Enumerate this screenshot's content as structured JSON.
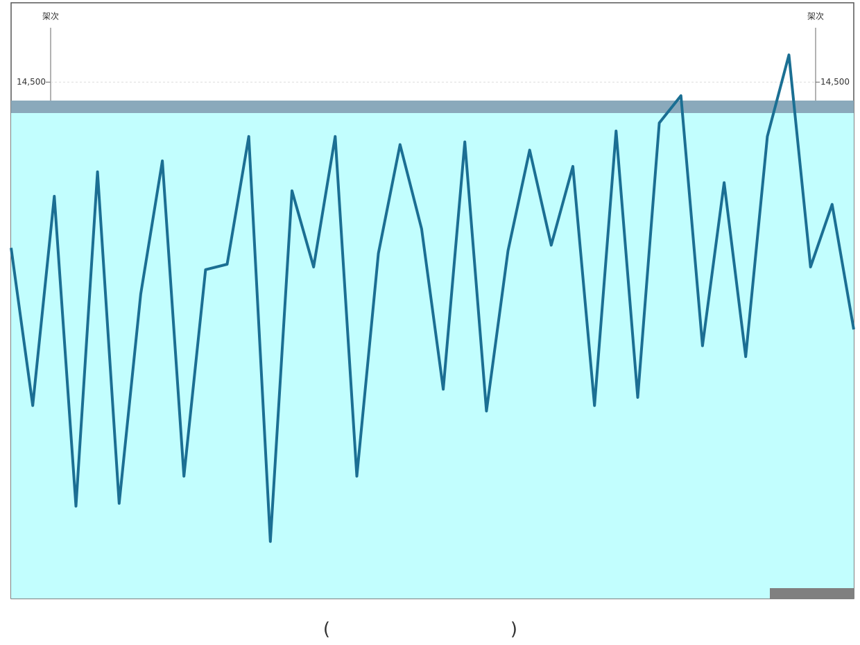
{
  "chart_data": {
    "type": "line",
    "ylabel": "架次",
    "y2label": "架次",
    "categories": [
      null,
      null,
      null,
      null,
      null,
      null,
      null,
      null,
      null,
      null,
      null,
      null,
      null,
      null,
      null,
      null,
      null,
      null,
      null,
      null,
      null,
      null,
      null,
      null,
      null,
      null,
      null,
      null,
      null,
      null,
      null,
      null,
      null,
      null,
      null,
      null,
      null,
      null,
      null,
      null
    ],
    "series": [
      {
        "color": "#1b6f93",
        "values": [
          13890,
          13310,
          14080,
          12940,
          14170,
          12950,
          13720,
          14210,
          13050,
          13810,
          13830,
          14300,
          12810,
          14100,
          13820,
          14300,
          13050,
          13870,
          14270,
          13960,
          13370,
          14280,
          13290,
          13880,
          14250,
          13900,
          14190,
          13310,
          14320,
          13340,
          14350,
          14450,
          13530,
          14130,
          13490,
          14300,
          14600,
          13820,
          14050,
          13590
        ]
      }
    ],
    "ylim": [
      12600,
      14700
    ],
    "yticks": [
      {
        "value": 14500,
        "label": "14,500"
      }
    ],
    "y2lim": [
      12600,
      14700
    ],
    "y2ticks": [
      {
        "value": 14500,
        "label": "14,500"
      }
    ],
    "grid": true
  },
  "footer": [
    "(",
    ")"
  ]
}
